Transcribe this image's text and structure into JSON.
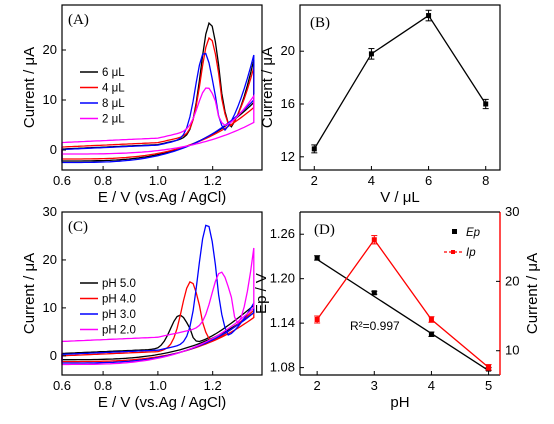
{
  "colors": {
    "black": "#000000",
    "red": "#ff0000",
    "blue": "#0000ff",
    "magenta": "#ff00ff"
  },
  "chart_data": [
    {
      "panel": "(A)",
      "type": "line",
      "xlabel": "E / V (vs.Ag / AgCl)",
      "ylabel": "Current / μA",
      "xlim": [
        0.65,
        1.38
      ],
      "ylim": [
        -4,
        29
      ],
      "xticks": [
        "0.6",
        "0.8",
        "1.0",
        "1.2"
      ],
      "yticks": [
        "0",
        "10",
        "20"
      ],
      "legend_position": "center-left",
      "series": [
        {
          "name": "6 μL",
          "color": "#000000",
          "peak_x": 1.19,
          "peak_y": 25.5,
          "end_top": 18,
          "end_bottom": 9.5,
          "start_top": 0.2,
          "start_bottom": -2.2
        },
        {
          "name": "4 μL",
          "color": "#ff0000",
          "peak_x": 1.19,
          "peak_y": 22.5,
          "end_top": 16.5,
          "end_bottom": 8.5,
          "start_top": 0.6,
          "start_bottom": -1.8
        },
        {
          "name": "8 μL",
          "color": "#0000ff",
          "peak_x": 1.17,
          "peak_y": 19.5,
          "end_top": 19,
          "end_bottom": 10,
          "start_top": 0.1,
          "start_bottom": -2.5
        },
        {
          "name": "2 μL",
          "color": "#ff00ff",
          "peak_x": 1.18,
          "peak_y": 12.5,
          "end_top": 10.8,
          "end_bottom": 5.5,
          "start_top": 1.5,
          "start_bottom": -0.8
        }
      ]
    },
    {
      "panel": "(B)",
      "type": "line",
      "xlabel": "V / μL",
      "ylabel": "Current / μA",
      "xlim": [
        1.5,
        8.5
      ],
      "ylim": [
        11,
        23.5
      ],
      "xticks": [
        "2",
        "4",
        "6",
        "8"
      ],
      "yticks": [
        "12",
        "16",
        "20"
      ],
      "x": [
        2,
        4,
        6,
        8
      ],
      "y": [
        12.6,
        19.8,
        22.7,
        16.0
      ],
      "err": [
        0.3,
        0.4,
        0.4,
        0.35
      ],
      "color": "#000000"
    },
    {
      "panel": "(C)",
      "type": "line",
      "xlabel": "E / V (vs.Ag / AgCl)",
      "ylabel": "Current / μA",
      "xlim": [
        0.65,
        1.38
      ],
      "ylim": [
        -4,
        30
      ],
      "xticks": [
        "0.6",
        "0.8",
        "1.0",
        "1.2"
      ],
      "yticks": [
        "0",
        "10",
        "20",
        "30"
      ],
      "legend_position": "center-left",
      "series": [
        {
          "name": "pH 5.0",
          "color": "#000000",
          "peak_x": 1.08,
          "peak_y": 8.5,
          "end_top": 10.5,
          "end_bottom": 9,
          "start_top": 0.5,
          "start_bottom": -0.8
        },
        {
          "name": "pH 4.0",
          "color": "#ff0000",
          "peak_x": 1.12,
          "peak_y": 15.5,
          "end_top": 9.5,
          "end_bottom": 8,
          "start_top": 0,
          "start_bottom": -1.2
        },
        {
          "name": "pH 3.0",
          "color": "#0000ff",
          "peak_x": 1.18,
          "peak_y": 27.5,
          "end_top": 11,
          "end_bottom": 9,
          "start_top": 0.3,
          "start_bottom": -1.5
        },
        {
          "name": "pH 2.0",
          "color": "#ff00ff",
          "peak_x": 1.23,
          "peak_y": 17.5,
          "end_top": 22.5,
          "end_bottom": 10,
          "start_top": 3,
          "start_bottom": -1.8
        }
      ]
    },
    {
      "panel": "(D)",
      "type": "line",
      "xlabel": "pH",
      "ylabel_left": "Ep / V",
      "ylabel_right": "Current / μA",
      "xlim": [
        1.7,
        5.2
      ],
      "ylim_left": [
        1.07,
        1.29
      ],
      "ylim_right": [
        6.5,
        30
      ],
      "xticks": [
        "2",
        "3",
        "4",
        "5"
      ],
      "yticks_left": [
        "1.08",
        "1.14",
        "1.20",
        "1.26"
      ],
      "yticks_right": [
        "10",
        "20",
        "30"
      ],
      "annotation": "R²=0.997",
      "legend": [
        "Ep",
        "Ip"
      ],
      "series": [
        {
          "name": "Ep",
          "axis": "left",
          "color": "#000000",
          "x": [
            2,
            3,
            4,
            5
          ],
          "y": [
            1.228,
            1.181,
            1.125,
            1.078
          ],
          "err": [
            0.003,
            0.002,
            0.003,
            0.002
          ],
          "fit": [
            1.226,
            1.076
          ]
        },
        {
          "name": "Ip",
          "axis": "right",
          "color": "#ff0000",
          "x": [
            2,
            3,
            4,
            5
          ],
          "y": [
            14.5,
            26.0,
            14.5,
            7.6
          ],
          "err": [
            0.5,
            0.6,
            0.4,
            0.4
          ]
        }
      ]
    }
  ]
}
